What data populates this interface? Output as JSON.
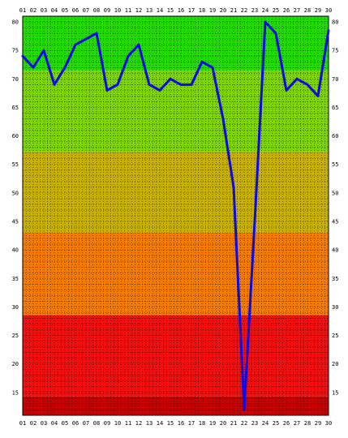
{
  "chart_data": {
    "type": "line",
    "title": "",
    "xlabel": "",
    "ylabel": "",
    "x": [
      "01",
      "02",
      "03",
      "04",
      "05",
      "06",
      "07",
      "08",
      "09",
      "10",
      "11",
      "12",
      "13",
      "14",
      "15",
      "16",
      "17",
      "18",
      "19",
      "20",
      "21",
      "22",
      "23",
      "24",
      "25",
      "26",
      "27",
      "28",
      "29",
      "30"
    ],
    "series": [
      {
        "name": "",
        "color": "#0a0ae6",
        "values": [
          74,
          72,
          75,
          69,
          72,
          76,
          77,
          78,
          68,
          69,
          74,
          76,
          69,
          68,
          70,
          69,
          69,
          73,
          72,
          63,
          51,
          12,
          45,
          80,
          78,
          68,
          70,
          69,
          67,
          78.5
        ]
      }
    ],
    "ylim": [
      11,
      81
    ],
    "y_ticks": [
      15,
      20,
      25,
      30,
      35,
      40,
      45,
      50,
      55,
      60,
      65,
      70,
      75,
      80
    ],
    "bands": [
      {
        "from": 11,
        "to": 14.3,
        "color": "#c80000"
      },
      {
        "from": 14.3,
        "to": 28.6,
        "color": "#f01010"
      },
      {
        "from": 28.6,
        "to": 43,
        "color": "#f47a00"
      },
      {
        "from": 43,
        "to": 57.2,
        "color": "#c8b000"
      },
      {
        "from": 57.2,
        "to": 71.5,
        "color": "#7cd400"
      },
      {
        "from": 71.5,
        "to": 81,
        "color": "#22dc00"
      }
    ],
    "grid": true,
    "axis_labels_both_sides": true
  }
}
